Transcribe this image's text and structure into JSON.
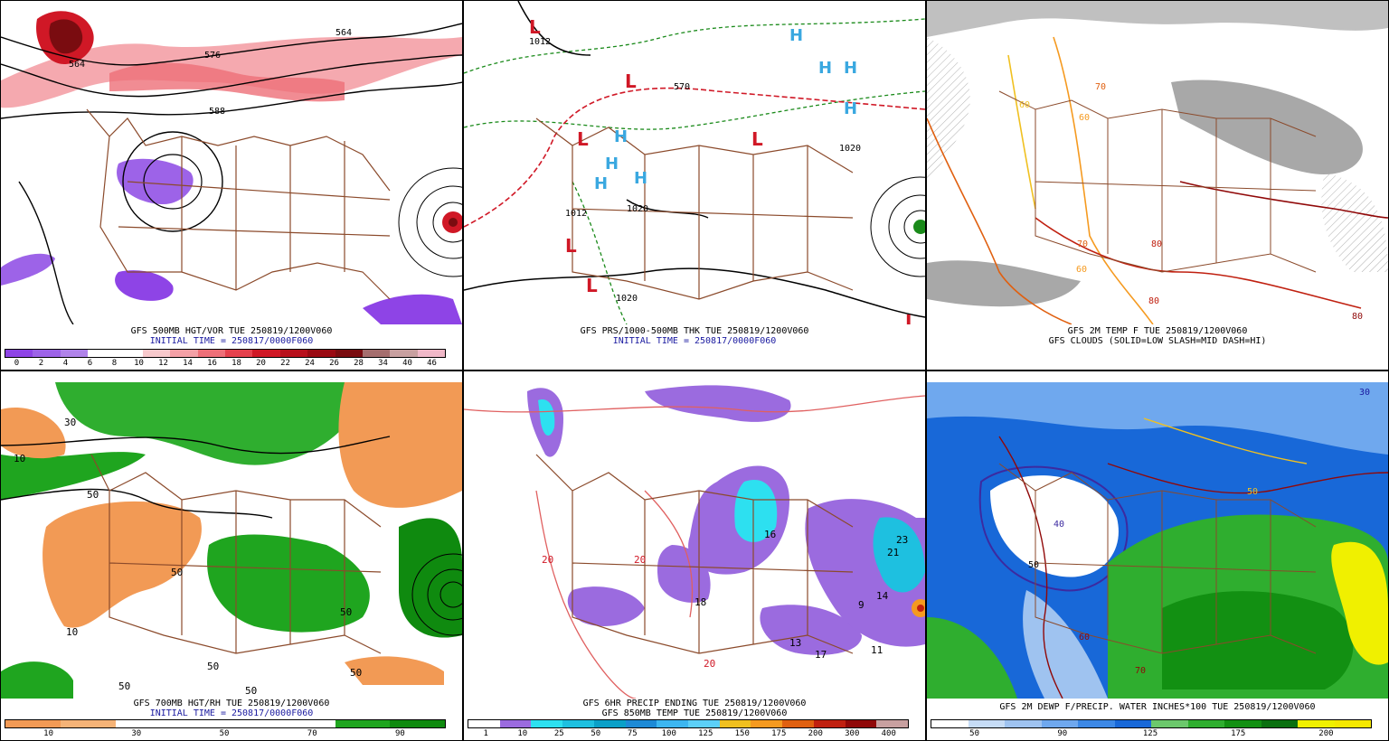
{
  "panels": [
    {
      "id": "p1",
      "caption1": "GFS 500MB HGT/VOR TUE 250819/1200V060",
      "caption2": "INITIAL TIME = 250817/0000F060",
      "colorbar": [
        "#8e44e6",
        "#9d63e8",
        "#b083ea",
        "#ffffff",
        "#ffffff",
        "#f7c9cc",
        "#f4a0a6",
        "#ee6f78",
        "#e5414d",
        "#d01826",
        "#b8101c",
        "#9a0a13",
        "#7a0c10",
        "#a56e6e",
        "#c8a0a0",
        "#f0b8c8"
      ],
      "ticks": [
        "0",
        "2",
        "4",
        "6",
        "8",
        "10",
        "12",
        "14",
        "16",
        "18",
        "20",
        "22",
        "24",
        "26",
        "28",
        "34",
        "40",
        "46"
      ],
      "contour_labels": [
        "564",
        "564",
        "576",
        "588"
      ]
    },
    {
      "id": "p2",
      "caption1": "GFS PRS/1000-500MB THK TUE 250819/1200V060",
      "caption2": "INITIAL TIME = 250817/0000F060",
      "contour_labels": [
        "1012",
        "570",
        "1020",
        "1012",
        "1020",
        "1020",
        "1012"
      ],
      "high_label": "H",
      "low_label": "L"
    },
    {
      "id": "p3",
      "caption1": "GFS 2M TEMP F TUE 250819/1200V060",
      "caption2": "GFS CLOUDS (SOLID=LOW SLASH=MID DASH=HI)",
      "contour_labels": [
        "60",
        "70",
        "60",
        "70",
        "80",
        "60",
        "70",
        "80",
        "70",
        "80",
        "80",
        "80",
        "80"
      ]
    },
    {
      "id": "p4",
      "caption1": "GFS 700MB HGT/RH TUE 250819/1200V060",
      "caption2": "INITIAL TIME = 250817/0000F060",
      "colorbar": [
        "#f29a55",
        "#f5b377",
        "#ffffff",
        "#ffffff",
        "#ffffff",
        "#ffffff",
        "#1fa51f",
        "#0f8a0f"
      ],
      "ticks": [
        "10",
        "30",
        "50",
        "70",
        "90"
      ],
      "contour_labels": [
        "10",
        "30",
        "50",
        "50",
        "50",
        "10",
        "50",
        "50",
        "50",
        "50"
      ]
    },
    {
      "id": "p5",
      "caption1": "GFS 6HR PRECIP ENDING TUE 250819/1200V060",
      "caption2": "GFS 850MB TEMP TUE 250819/1200V060",
      "colorbar": [
        "#ffffff",
        "#9b6bdf",
        "#2de0f0",
        "#1ec0e0",
        "#0aa0c8",
        "#1d8ad6",
        "#3cb6f0",
        "#5cd0f8",
        "#f0c020",
        "#f59a20",
        "#e06010",
        "#c02010",
        "#900808",
        "#c8a0a0"
      ],
      "ticks": [
        "1",
        "10",
        "25",
        "50",
        "75",
        "100",
        "125",
        "150",
        "175",
        "200",
        "300",
        "400"
      ],
      "contour_labels": [
        "20",
        "20",
        "20",
        "16",
        "14",
        "9",
        "11",
        "13",
        "17",
        "23",
        "21",
        "18"
      ]
    },
    {
      "id": "p6",
      "caption1": "GFS 2M DEWP F/PRECIP. WATER INCHES*100 TUE 250819/1200V060",
      "caption2": "",
      "colorbar": [
        "#ffffff",
        "#c6dcf6",
        "#9fc3f0",
        "#6fa8ee",
        "#3c88e6",
        "#1868d8",
        "#6cc86c",
        "#2fae2f",
        "#129012",
        "#0a7010",
        "#f0f000",
        "#f5e800"
      ],
      "ticks": [
        "50",
        "90",
        "125",
        "175",
        "200"
      ],
      "contour_labels": [
        "30",
        "50",
        "40",
        "50",
        "50",
        "50",
        "60",
        "60",
        "60",
        "70",
        "70",
        "70"
      ]
    }
  ]
}
